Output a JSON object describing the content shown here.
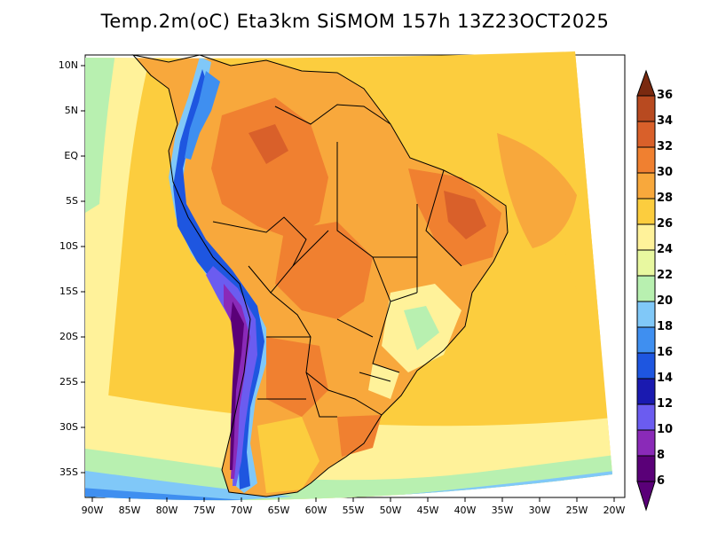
{
  "title": "Temp.2m(oC) Eta3km SiSMOM 157h 13Z23OCT2025",
  "latitude_labels": [
    "10N",
    "5N",
    "EQ",
    "5S",
    "10S",
    "15S",
    "20S",
    "25S",
    "30S",
    "35S"
  ],
  "longitude_labels": [
    "90W",
    "85W",
    "80W",
    "75W",
    "70W",
    "65W",
    "60W",
    "55W",
    "50W",
    "45W",
    "40W",
    "35W",
    "30W",
    "25W",
    "20W"
  ],
  "colorbar": {
    "labels": [
      "36",
      "34",
      "32",
      "30",
      "28",
      "26",
      "24",
      "22",
      "20",
      "18",
      "16",
      "14",
      "12",
      "10",
      "8",
      "6"
    ],
    "colors": {
      "c6_8": "#5a0078",
      "c8_10": "#8a2ab8",
      "c10_12": "#6b5cf0",
      "c12_14": "#1a1ab0",
      "c14_16": "#1e56e0",
      "c16_18": "#3f8ff0",
      "c18_20": "#80c8f8",
      "c20_22": "#b8f0b0",
      "c22_24": "#e8f8a0",
      "c24_26": "#fff29a",
      "c26_28": "#fccd3e",
      "c28_30": "#f8a83c",
      "c30_32": "#f08030",
      "c32_34": "#d9602a",
      "c34_36": "#b84a20",
      "c36_plus": "#7a2a10"
    }
  }
}
